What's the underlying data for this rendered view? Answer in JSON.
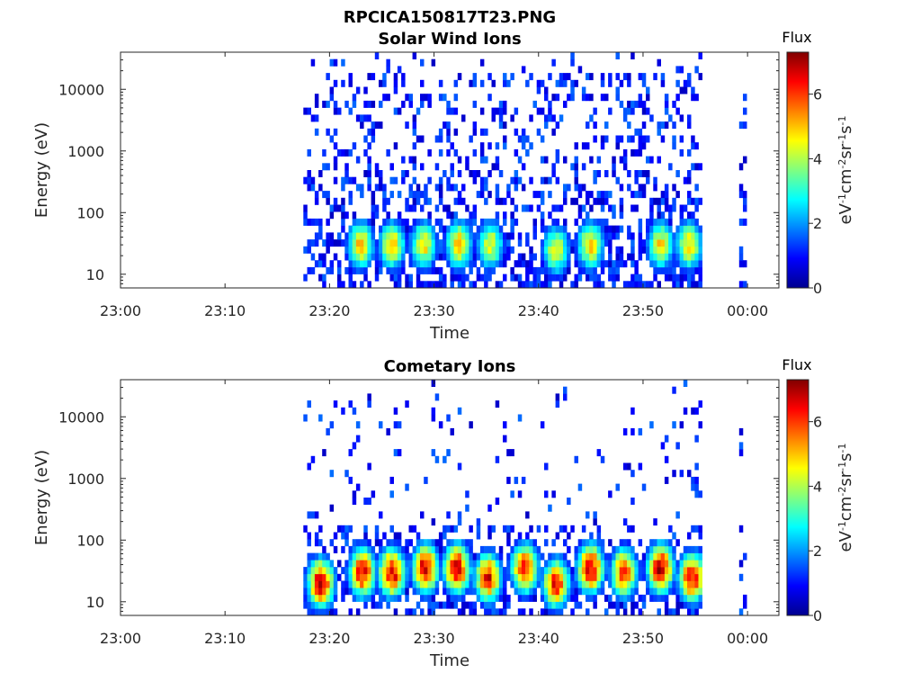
{
  "figure": {
    "title": "RPCICA150817T23.PNG",
    "colormap": "jet",
    "colormap_stops": [
      "#00008f",
      "#0000ff",
      "#0080ff",
      "#00ffff",
      "#80ff80",
      "#ffff00",
      "#ff8000",
      "#ff0000",
      "#800000"
    ]
  },
  "chart_data": [
    {
      "type": "heatmap",
      "title": "Solar Wind Ions",
      "xlabel": "Time",
      "ylabel": "Energy (eV)",
      "y_scale": "log",
      "ylim": [
        6,
        40000
      ],
      "x_range_minutes": [
        0,
        63
      ],
      "xticks": [
        "23:00",
        "23:10",
        "23:20",
        "23:30",
        "23:40",
        "23:50",
        "00:00"
      ],
      "yticks": [
        "10",
        "100",
        "1000",
        "10000"
      ],
      "colorbar": {
        "title": "Flux",
        "label": "eV-1cm-2sr-1s-1",
        "range": [
          0,
          7.3
        ],
        "ticks": [
          "0",
          "2",
          "4",
          "6"
        ]
      },
      "data_coverage_minutes": [
        [
          17.5,
          55.5
        ],
        [
          59.2,
          59.8
        ]
      ],
      "hotspots": [
        {
          "t": 22.8,
          "e": 30,
          "flux": 5
        },
        {
          "t": 25.8,
          "e": 30,
          "flux": 5
        },
        {
          "t": 28.8,
          "e": 30,
          "flux": 4.8
        },
        {
          "t": 32.2,
          "e": 30,
          "flux": 5.2
        },
        {
          "t": 35.2,
          "e": 30,
          "flux": 4.6
        },
        {
          "t": 41.5,
          "e": 25,
          "flux": 4.6
        },
        {
          "t": 44.8,
          "e": 30,
          "flux": 5
        },
        {
          "t": 51.5,
          "e": 30,
          "flux": 4.8
        },
        {
          "t": 54.2,
          "e": 30,
          "flux": 5
        }
      ]
    },
    {
      "type": "heatmap",
      "title": "Cometary Ions",
      "xlabel": "Time",
      "ylabel": "Energy (eV)",
      "y_scale": "log",
      "ylim": [
        6,
        40000
      ],
      "x_range_minutes": [
        0,
        63
      ],
      "xticks": [
        "23:00",
        "23:10",
        "23:20",
        "23:30",
        "23:40",
        "23:50",
        "00:00"
      ],
      "yticks": [
        "10",
        "100",
        "1000",
        "10000"
      ],
      "colorbar": {
        "title": "Flux",
        "label": "eV-1cm-2sr-1s-1",
        "range": [
          0,
          7.3
        ],
        "ticks": [
          "0",
          "2",
          "4",
          "6"
        ]
      },
      "data_coverage_minutes": [
        [
          17.5,
          55.5
        ],
        [
          59.2,
          59.8
        ]
      ],
      "hotspots": [
        {
          "t": 19.0,
          "e": 20,
          "flux": 7
        },
        {
          "t": 23.0,
          "e": 30,
          "flux": 6.8
        },
        {
          "t": 25.8,
          "e": 30,
          "flux": 7
        },
        {
          "t": 29.0,
          "e": 35,
          "flux": 6.8
        },
        {
          "t": 32.0,
          "e": 35,
          "flux": 7
        },
        {
          "t": 35.0,
          "e": 25,
          "flux": 6.5
        },
        {
          "t": 38.5,
          "e": 35,
          "flux": 6.8
        },
        {
          "t": 41.5,
          "e": 20,
          "flux": 6.4
        },
        {
          "t": 44.8,
          "e": 35,
          "flux": 7
        },
        {
          "t": 48.0,
          "e": 30,
          "flux": 6.2
        },
        {
          "t": 51.5,
          "e": 35,
          "flux": 7
        },
        {
          "t": 54.5,
          "e": 25,
          "flux": 6.8
        }
      ]
    }
  ]
}
